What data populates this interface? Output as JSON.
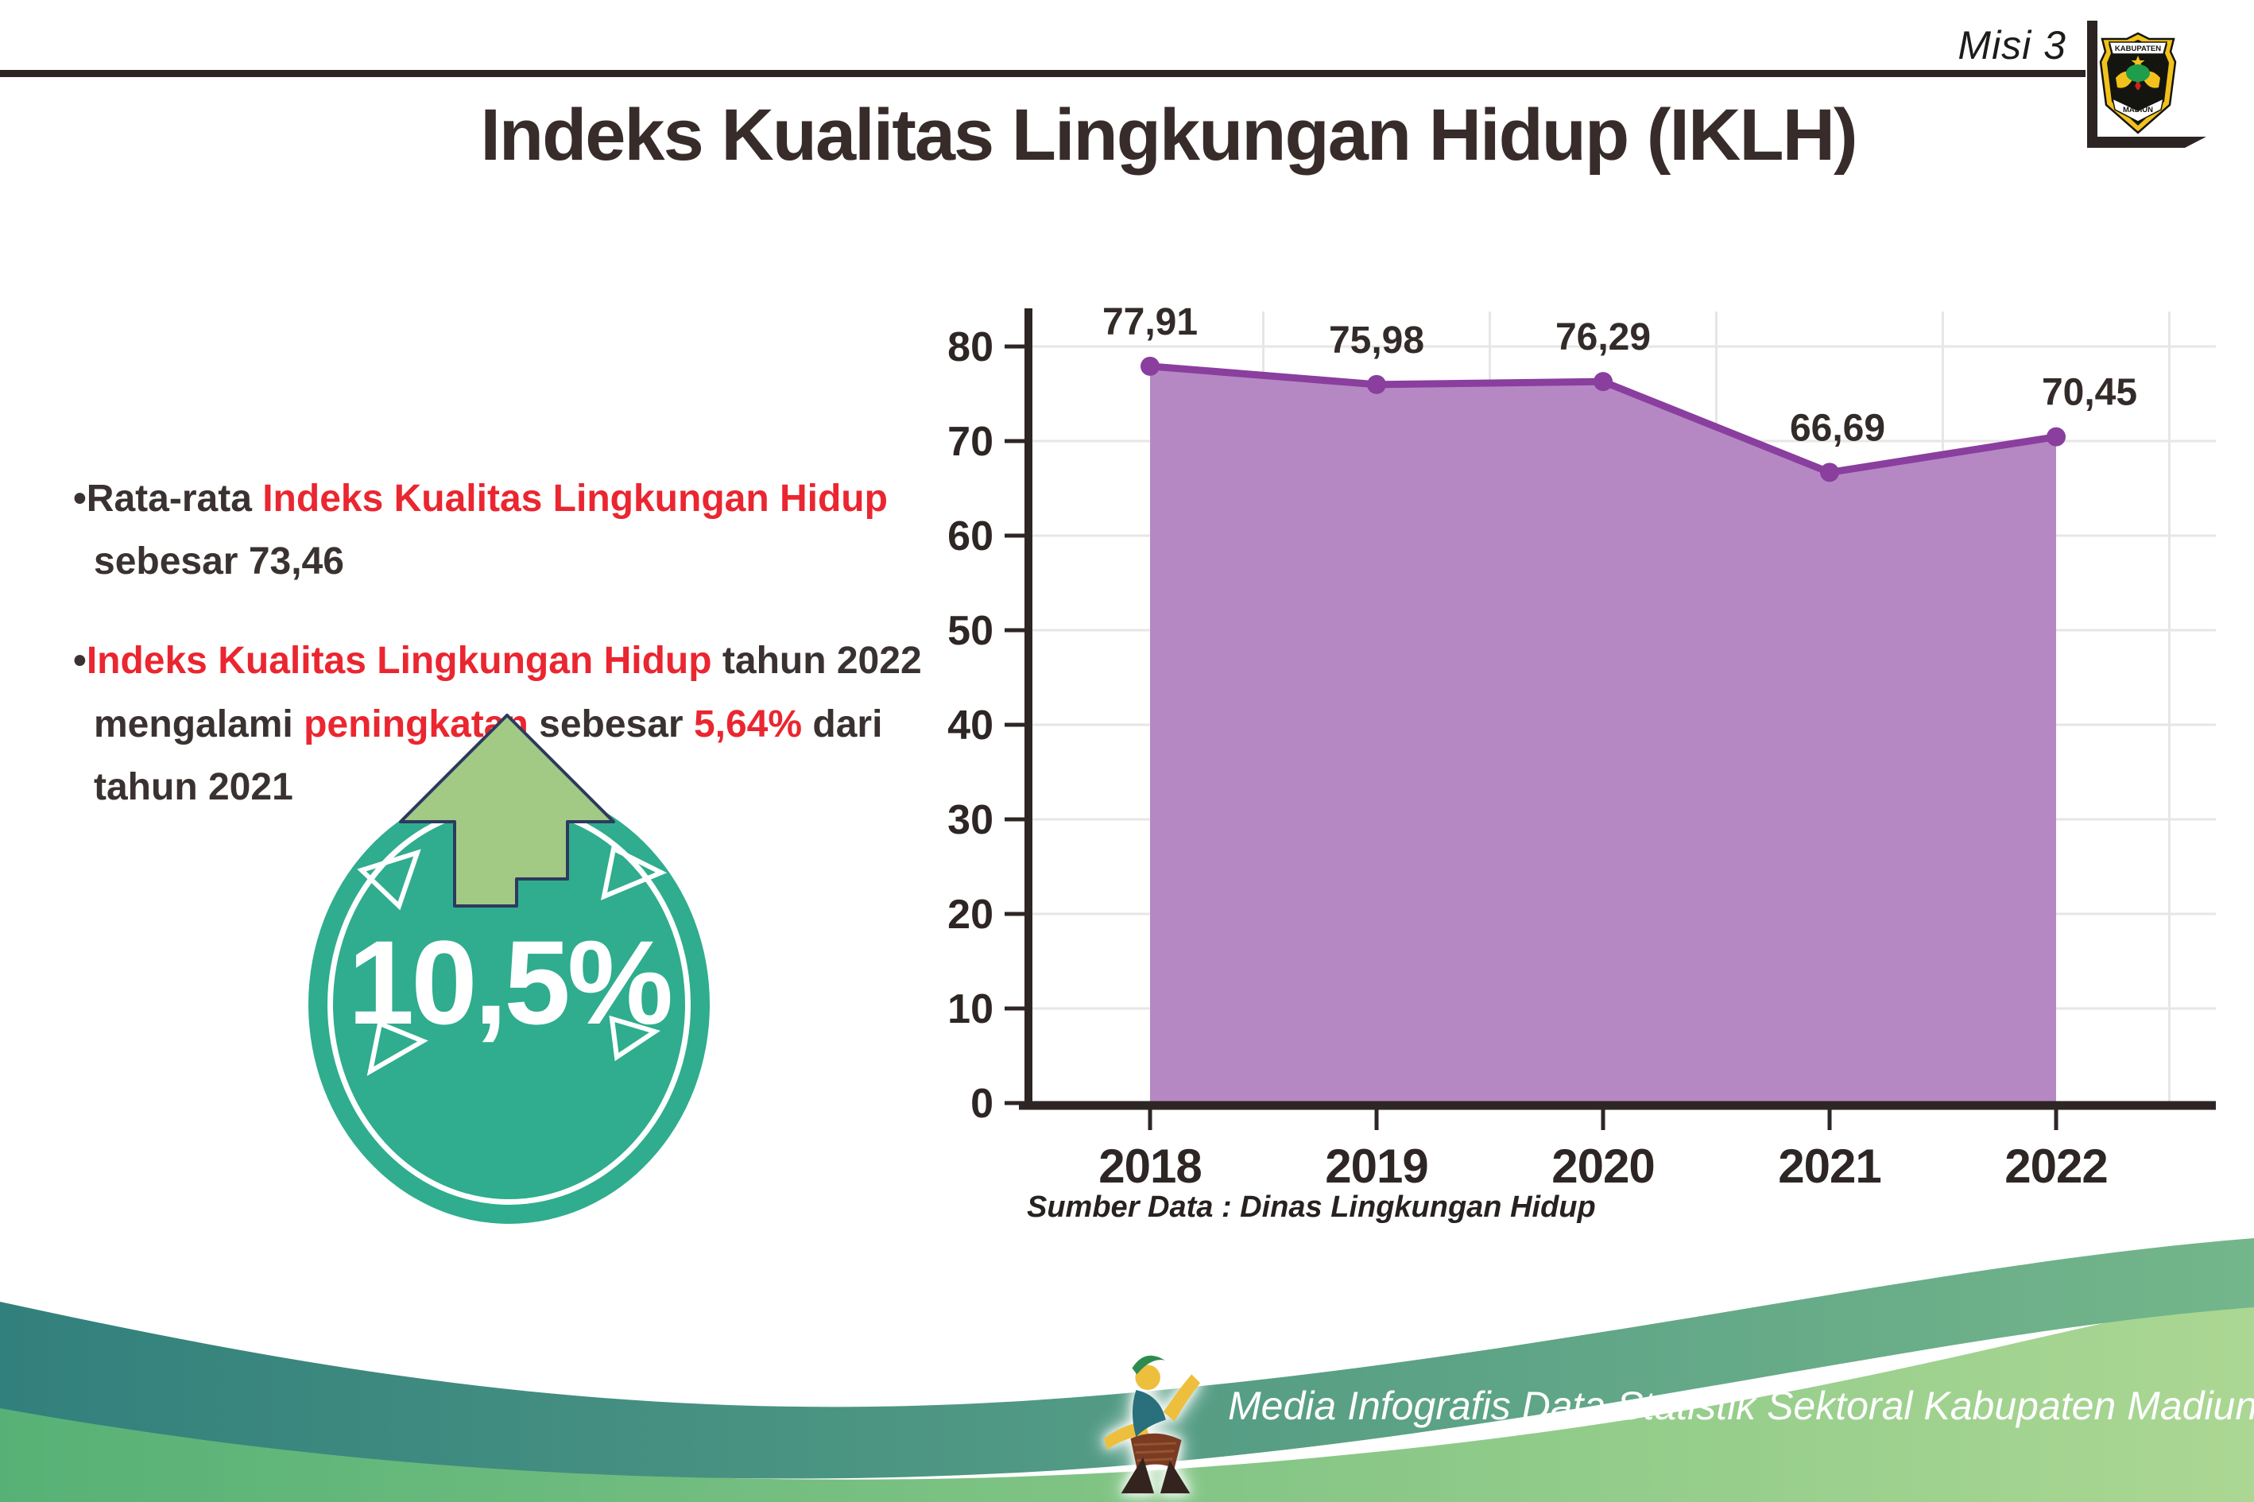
{
  "header": {
    "misi": "Misi 3",
    "title": "Indeks Kualitas Lingkungan Hidup (IKLH)",
    "crest_top": "KABUPATEN",
    "crest_bottom": "MADIUN"
  },
  "bullets": {
    "b1": [
      {
        "t": "•Rata-rata ",
        "red": false
      },
      {
        "t": "Indeks Kualitas Lingkungan Hidup",
        "red": true
      },
      {
        "br": true
      },
      {
        "t": "sebesar 73,46",
        "red": false
      }
    ],
    "b2": [
      {
        "t": "•",
        "red": false
      },
      {
        "t": "Indeks Kualitas Lingkungan Hidup",
        "red": true
      },
      {
        "t": " tahun 2022",
        "red": false
      },
      {
        "br": true
      },
      {
        "t": "mengalami ",
        "red": false
      },
      {
        "t": "peningkatan",
        "red": true
      },
      {
        "t": " sebesar ",
        "red": false
      },
      {
        "t": "5,64%",
        "red": true
      },
      {
        "t": " dari",
        "red": false
      },
      {
        "br": true
      },
      {
        "t": "tahun 2021",
        "red": false
      }
    ]
  },
  "badge": {
    "value": "10,5%",
    "circle_color": "#2fad8e",
    "arrow_color": "#a3ca84",
    "arrow_outline": "#2d3a5e"
  },
  "chart_data": {
    "type": "area",
    "title": "",
    "xlabel": "",
    "ylabel": "",
    "categories": [
      "2018",
      "2019",
      "2020",
      "2021",
      "2022"
    ],
    "values": [
      77.91,
      75.98,
      76.29,
      66.69,
      70.45
    ],
    "labels": [
      "77,91",
      "75,98",
      "76,29",
      "66,69",
      "70,45"
    ],
    "yticks": [
      0,
      10,
      20,
      30,
      40,
      50,
      60,
      70,
      80
    ],
    "ylim": [
      0,
      85
    ],
    "grid": true,
    "legend": "none",
    "source": "Sumber Data : Dinas Lingkungan Hidup",
    "colors": {
      "fill": "#b588c3",
      "line": "#8a3e9e",
      "marker": "#8a3e9e",
      "axis": "#2d2624",
      "gridline": "#e8e5e7",
      "label": "#332b29"
    }
  },
  "footer": {
    "text": "Media Infografis Data Statistik Sektoral Kabupaten Madiun |",
    "teal_left": "#32807d",
    "teal_right": "#74b68b",
    "green_left": "#57b176",
    "green_right": "#abd793"
  }
}
